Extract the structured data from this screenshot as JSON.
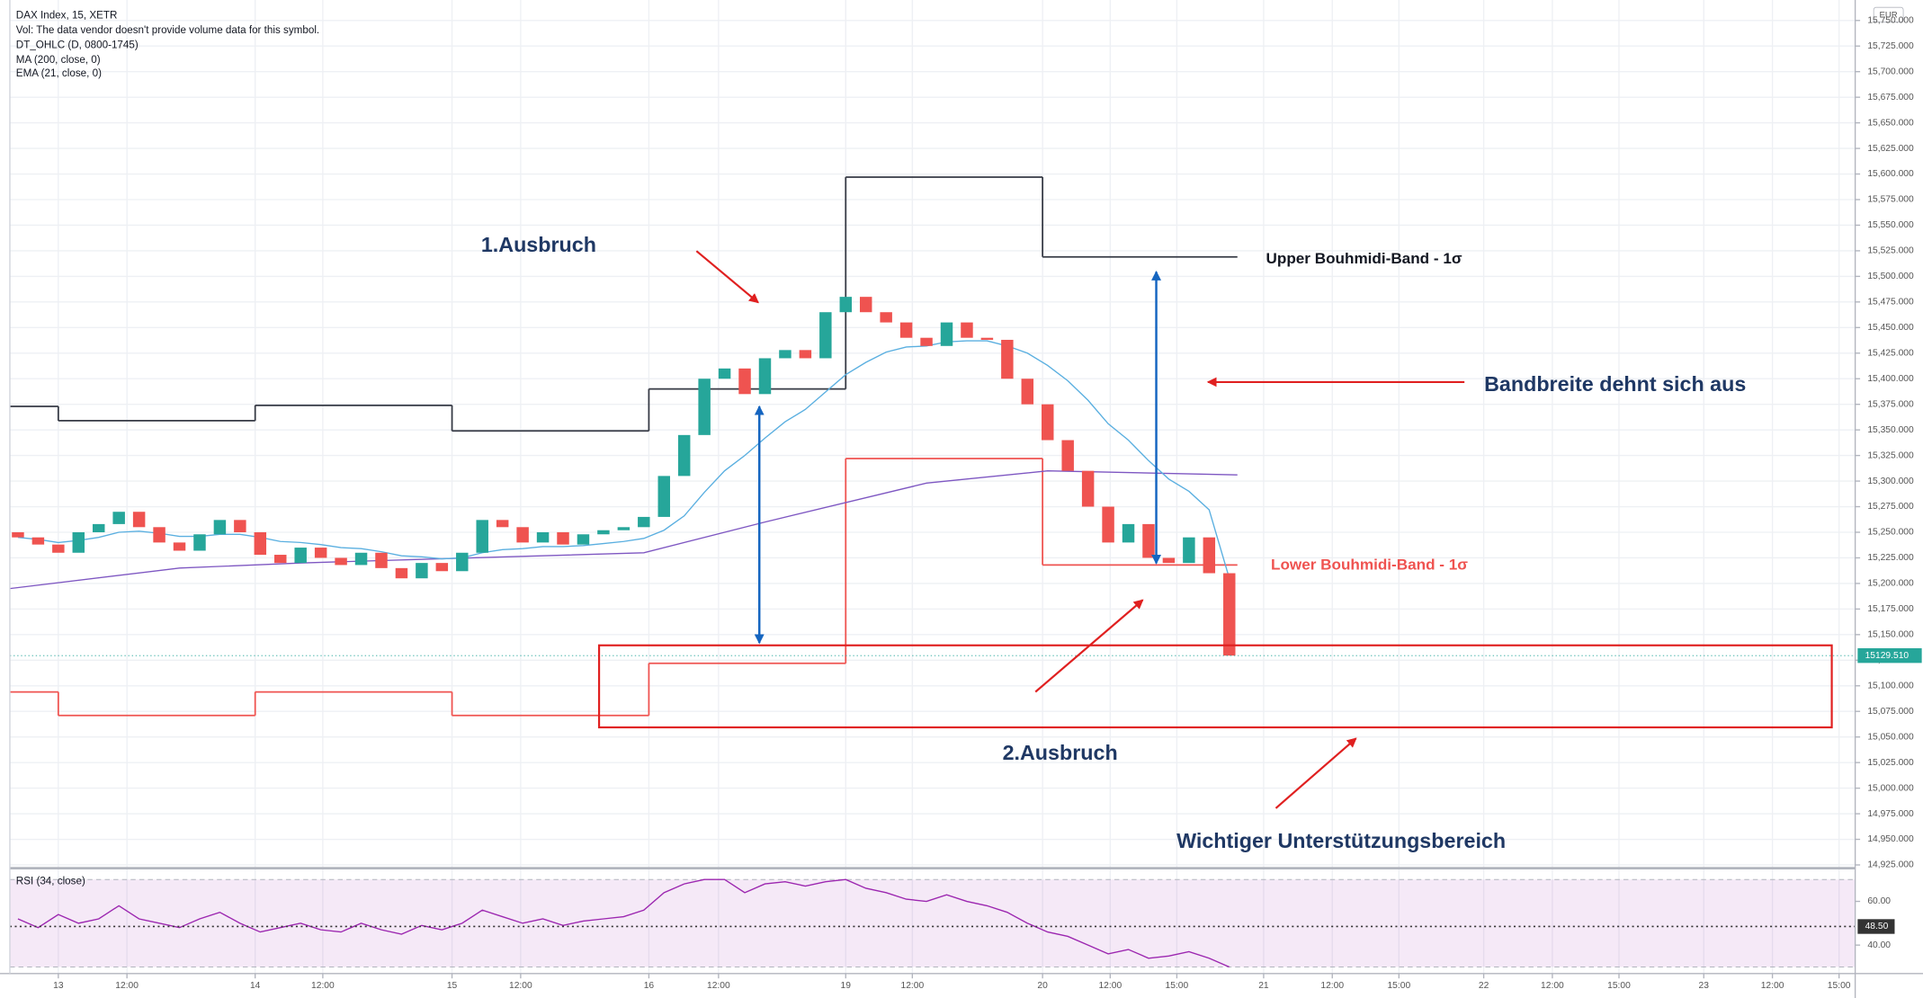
{
  "chart_data": [
    {
      "type": "candlestick",
      "title": "DAX Index, 15, XETR",
      "notes": [
        "Vol: The data vendor doesn't provide volume data for this symbol.",
        "DT_OHLC (D, 0800-1745)"
      ],
      "currency": "EUR",
      "x": [
        -2,
        -1,
        0,
        1,
        2,
        3,
        4,
        5,
        6,
        7,
        8,
        9,
        10,
        11,
        12,
        13,
        14,
        15,
        16,
        17,
        18,
        19,
        20,
        21,
        22,
        23,
        24,
        25,
        26,
        27,
        28,
        29,
        30,
        31,
        32,
        33,
        34,
        35,
        36,
        37,
        38,
        39,
        40,
        41,
        42,
        43,
        44,
        45,
        46,
        47,
        48,
        49,
        50,
        51,
        52,
        53,
        54,
        55,
        56,
        57,
        58
      ],
      "open": [
        15250,
        15245,
        15238,
        15230,
        15250,
        15258,
        15270,
        15255,
        15240,
        15232,
        15248,
        15262,
        15250,
        15228,
        15220,
        15235,
        15225,
        15218,
        15230,
        15215,
        15205,
        15220,
        15212,
        15230,
        15262,
        15255,
        15240,
        15250,
        15238,
        15248,
        15252,
        15255,
        15265,
        15305,
        15345,
        15400,
        15410,
        15385,
        15420,
        15428,
        15420,
        15465,
        15480,
        15465,
        15455,
        15440,
        15432,
        15455,
        15440,
        15438,
        15400,
        15375,
        15340,
        15310,
        15275,
        15240,
        15258,
        15225,
        15220,
        15245,
        15210
      ],
      "close": [
        15245,
        15238,
        15230,
        15250,
        15258,
        15270,
        15255,
        15240,
        15232,
        15248,
        15262,
        15250,
        15228,
        15220,
        15235,
        15225,
        15218,
        15230,
        15215,
        15205,
        15220,
        15212,
        15230,
        15262,
        15255,
        15240,
        15250,
        15238,
        15248,
        15252,
        15255,
        15265,
        15305,
        15345,
        15400,
        15410,
        15385,
        15420,
        15428,
        15420,
        15465,
        15480,
        15465,
        15455,
        15440,
        15432,
        15455,
        15440,
        15438,
        15400,
        15375,
        15340,
        15310,
        15275,
        15240,
        15258,
        15225,
        15220,
        15245,
        15210,
        15129.51
      ],
      "up_color": "#26a69a",
      "down_color": "#ef5350",
      "series": [
        {
          "name": "MA (200, close, 0)",
          "color": "#7e57c2",
          "x": [
            -2.4,
            6,
            12,
            29,
            35,
            43,
            49,
            58.4
          ],
          "values": [
            15195,
            15215,
            15220,
            15230,
            15260,
            15298,
            15310,
            15306
          ]
        },
        {
          "name": "EMA (21, close, 0)",
          "color": "#5aafe0",
          "values": [
            15245,
            15243,
            15240,
            15242,
            15245,
            15250,
            15251,
            15249,
            15246,
            15246,
            15248,
            15248,
            15245,
            15241,
            15240,
            15238,
            15235,
            15234,
            15231,
            15227,
            15226,
            15224,
            15225,
            15230,
            15233,
            15234,
            15236,
            15236,
            15237,
            15239,
            15241,
            15244,
            15252,
            15266,
            15289,
            15310,
            15325,
            15342,
            15358,
            15370,
            15387,
            15404,
            15416,
            15426,
            15431,
            15432,
            15436,
            15437,
            15437,
            15432,
            15425,
            15413,
            15398,
            15379,
            15356,
            15340,
            15320,
            15302,
            15290,
            15272,
            15205
          ]
        }
      ],
      "bands": [
        {
          "name": "Upper Bouhmidi-Band - 1σ",
          "color": "#363a45",
          "edges": [
            -2.4,
            0,
            9.75,
            19.5,
            29.25,
            39,
            48.75,
            58.4
          ],
          "values": [
            15373,
            15359,
            15374,
            15349,
            15390,
            15597,
            15519
          ]
        },
        {
          "name": "Lower Bouhmidi-Band - 1σ",
          "color": "#ef5350",
          "edges": [
            -2.4,
            0,
            9.75,
            19.5,
            29.25,
            39,
            48.75,
            58.4
          ],
          "values": [
            15094,
            15071,
            15094,
            15071,
            15122,
            15322,
            15218
          ]
        }
      ],
      "annotations": [
        "1.Ausbruch",
        "Bandbreite dehnt sich aus",
        "2.Ausbruch",
        "Wichtiger Unterstützungsbereich"
      ],
      "last_price": {
        "value": 15129.51,
        "label": "15129.510"
      },
      "xlim": [
        -2.4,
        89
      ],
      "ylim": [
        14923,
        15770
      ],
      "yticks": [
        {
          "value": 14925,
          "label": "14,925.000"
        },
        {
          "value": 14950,
          "label": "14,950.000"
        },
        {
          "value": 14975,
          "label": "14,975.000"
        },
        {
          "value": 15000,
          "label": "15,000.000"
        },
        {
          "value": 15025,
          "label": "15,025.000"
        },
        {
          "value": 15050,
          "label": "15,050.000"
        },
        {
          "value": 15075,
          "label": "15,075.000"
        },
        {
          "value": 15100,
          "label": "15,100.000"
        },
        {
          "value": 15125,
          "label": "15,125.000"
        },
        {
          "value": 15150,
          "label": "15,150.000"
        },
        {
          "value": 15175,
          "label": "15,175.000"
        },
        {
          "value": 15200,
          "label": "15,200.000"
        },
        {
          "value": 15225,
          "label": "15,225.000"
        },
        {
          "value": 15250,
          "label": "15,250.000"
        },
        {
          "value": 15275,
          "label": "15,275.000"
        },
        {
          "value": 15300,
          "label": "15,300.000"
        },
        {
          "value": 15325,
          "label": "15,325.000"
        },
        {
          "value": 15350,
          "label": "15,350.000"
        },
        {
          "value": 15375,
          "label": "15,375.000"
        },
        {
          "value": 15400,
          "label": "15,400.000"
        },
        {
          "value": 15425,
          "label": "15,425.000"
        },
        {
          "value": 15450,
          "label": "15,450.000"
        },
        {
          "value": 15475,
          "label": "15,475.000"
        },
        {
          "value": 15500,
          "label": "15,500.000"
        },
        {
          "value": 15525,
          "label": "15,525.000"
        },
        {
          "value": 15550,
          "label": "15,550.000"
        },
        {
          "value": 15575,
          "label": "15,575.000"
        },
        {
          "value": 15600,
          "label": "15,600.000"
        },
        {
          "value": 15625,
          "label": "15,625.000"
        },
        {
          "value": 15650,
          "label": "15,650.000"
        },
        {
          "value": 15675,
          "label": "15,675.000"
        },
        {
          "value": 15700,
          "label": "15,700.000"
        },
        {
          "value": 15725,
          "label": "15,725.000"
        },
        {
          "value": 15750,
          "label": "15,750.000"
        }
      ],
      "grid": true
    },
    {
      "type": "line",
      "title": "RSI (34, close)",
      "series": [
        {
          "color": "#9c27b0",
          "values": [
            52,
            48,
            54,
            50,
            52,
            58,
            52,
            50,
            48,
            52,
            55,
            50,
            46,
            48,
            50,
            47,
            46,
            50,
            47,
            45,
            49,
            47,
            50,
            56,
            53,
            50,
            52,
            49,
            51,
            52,
            53,
            56,
            64,
            68,
            70,
            70,
            64,
            68,
            69,
            67,
            69,
            70,
            66,
            64,
            61,
            60,
            63,
            60,
            58,
            55,
            50,
            46,
            44,
            40,
            36,
            38,
            34,
            35,
            37,
            34,
            30
          ]
        }
      ],
      "band": [
        30,
        70
      ],
      "band_color": "#9c27b0",
      "marker": {
        "value": 48.5,
        "label": "48.50"
      },
      "xlim": [
        -2.4,
        89
      ],
      "ylim": [
        27,
        73.5
      ],
      "yticks": [
        {
          "value": 60,
          "label": "60.00"
        },
        {
          "value": 40,
          "label": "40.00"
        }
      ],
      "xticks": [
        {
          "value": 0,
          "label": "13"
        },
        {
          "value": 3.4,
          "label": "12:00"
        },
        {
          "value": 9.75,
          "label": "14"
        },
        {
          "value": 13.1,
          "label": "12:00"
        },
        {
          "value": 19.5,
          "label": "15"
        },
        {
          "value": 22.9,
          "label": "12:00"
        },
        {
          "value": 29.25,
          "label": "16"
        },
        {
          "value": 32.7,
          "label": "12:00"
        },
        {
          "value": 39,
          "label": "19"
        },
        {
          "value": 42.3,
          "label": "12:00"
        },
        {
          "value": 48.75,
          "label": "20"
        },
        {
          "value": 52.1,
          "label": "12:00"
        },
        {
          "value": 55.4,
          "label": "15:00"
        },
        {
          "value": 59.7,
          "label": "21"
        },
        {
          "value": 63.1,
          "label": "12:00"
        },
        {
          "value": 66.4,
          "label": "15:00"
        },
        {
          "value": 70.6,
          "label": "22"
        },
        {
          "value": 74.0,
          "label": "12:00"
        },
        {
          "value": 77.3,
          "label": "15:00"
        },
        {
          "value": 81.5,
          "label": "23"
        },
        {
          "value": 84.9,
          "label": "12:00"
        },
        {
          "value": 88.2,
          "label": "15:00"
        }
      ],
      "grid": true
    }
  ]
}
